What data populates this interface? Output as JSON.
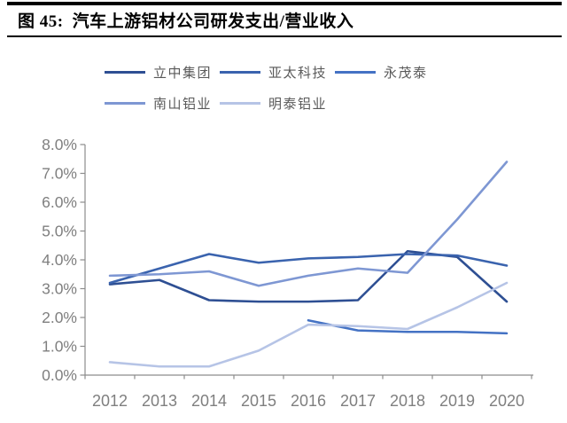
{
  "header": {
    "figure_label": "图 45:",
    "title": "汽车上游铝材公司研发支出/营业收入"
  },
  "colors": {
    "axis_line": "#8c8c8c",
    "tick_label": "#7f7f7f",
    "legend_text": "#595959",
    "rule": "#000000"
  },
  "chart_data": {
    "type": "line",
    "title": "汽车上游铝材公司研发支出/营业收入",
    "x": [
      "2012",
      "2013",
      "2014",
      "2015",
      "2016",
      "2017",
      "2018",
      "2019",
      "2020"
    ],
    "y_ticks": [
      "0.0%",
      "1.0%",
      "2.0%",
      "3.0%",
      "4.0%",
      "5.0%",
      "6.0%",
      "7.0%",
      "8.0%"
    ],
    "ylim": [
      0,
      8
    ],
    "y_unit": "%",
    "grid": false,
    "legend_position": "top-left",
    "series": [
      {
        "name": "立中集团",
        "color": "#2e4f93",
        "values": [
          3.15,
          3.3,
          2.6,
          2.55,
          2.55,
          2.6,
          4.3,
          4.1,
          2.55
        ]
      },
      {
        "name": "亚太科技",
        "color": "#3a63ae",
        "values": [
          3.2,
          3.7,
          4.2,
          3.9,
          4.05,
          4.1,
          4.2,
          4.15,
          3.8
        ]
      },
      {
        "name": "永茂泰",
        "color": "#4472c4",
        "values": [
          null,
          null,
          null,
          null,
          1.9,
          1.55,
          1.5,
          1.5,
          1.45
        ]
      },
      {
        "name": "南山铝业",
        "color": "#7e97d3",
        "values": [
          3.45,
          3.5,
          3.6,
          3.1,
          3.45,
          3.7,
          3.55,
          5.4,
          7.4
        ]
      },
      {
        "name": "明泰铝业",
        "color": "#b6c4e6",
        "values": [
          0.45,
          0.3,
          0.3,
          0.85,
          1.75,
          1.7,
          1.6,
          2.35,
          3.2
        ]
      }
    ]
  }
}
